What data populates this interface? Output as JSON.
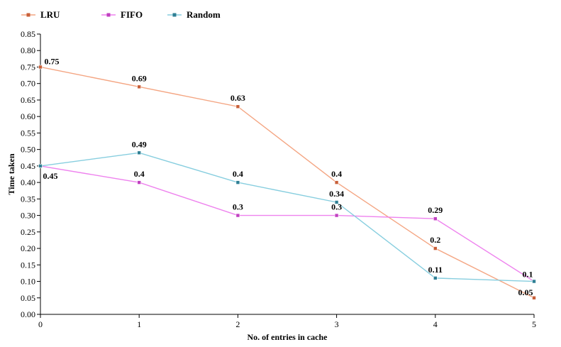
{
  "chart_data": {
    "type": "line",
    "title": "",
    "xlabel": "No. of entries in cache",
    "ylabel": "Time taken",
    "x": [
      0,
      1,
      2,
      3,
      4,
      5
    ],
    "xlim": [
      0,
      5
    ],
    "ylim": [
      0,
      0.85
    ],
    "x_ticks": [
      "0",
      "1",
      "2",
      "3",
      "4",
      "5"
    ],
    "y_ticks": [
      "0.00",
      "0.05",
      "0.10",
      "0.15",
      "0.20",
      "0.25",
      "0.30",
      "0.35",
      "0.40",
      "0.45",
      "0.50",
      "0.55",
      "0.60",
      "0.65",
      "0.70",
      "0.75",
      "0.80",
      "0.85"
    ],
    "grid": false,
    "legend_position": "top-left",
    "series": [
      {
        "name": "LRU",
        "color": "#f4a582",
        "marker_color": "#c8603a",
        "values": [
          0.75,
          0.69,
          0.63,
          0.4,
          0.2,
          0.05
        ],
        "labels": [
          "0.75",
          "0.69",
          "0.63",
          "0.4",
          "0.2",
          "0.05"
        ]
      },
      {
        "name": "FIFO",
        "color": "#ee82ee",
        "marker_color": "#c040c0",
        "values": [
          0.45,
          0.4,
          0.3,
          0.3,
          0.29,
          0.1
        ],
        "labels": [
          "0.45",
          "0.4",
          "0.3",
          "0.3",
          "0.29",
          "0.1"
        ]
      },
      {
        "name": "Random",
        "color": "#87cedf",
        "marker_color": "#2f7f94",
        "values": [
          0.45,
          0.49,
          0.4,
          0.34,
          0.11,
          0.1
        ],
        "labels": [
          "",
          "0.49",
          "0.4",
          "0.34",
          "0.11",
          ""
        ]
      }
    ]
  }
}
